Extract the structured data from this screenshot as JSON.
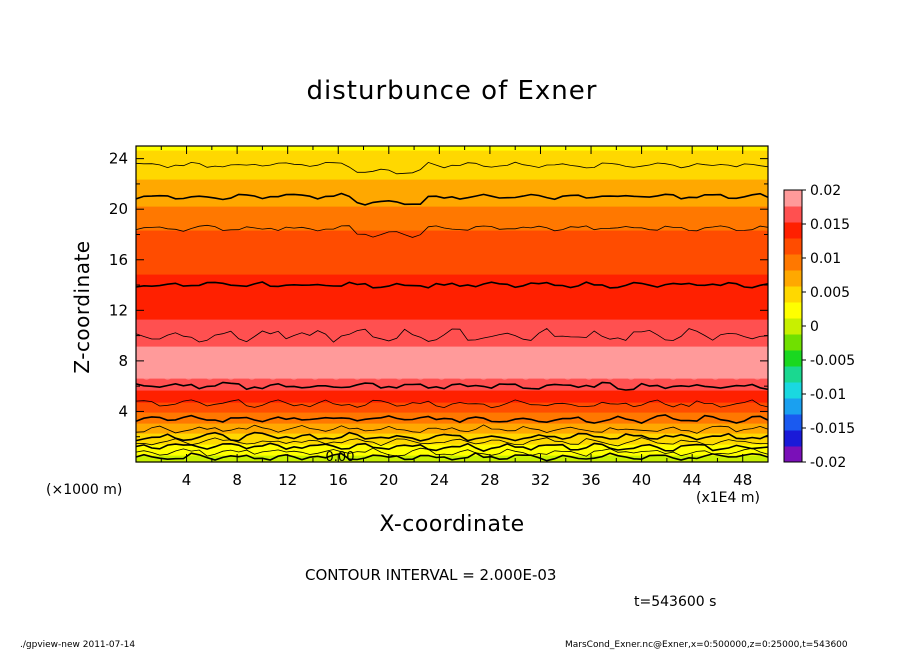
{
  "chart_data": {
    "type": "heatmap",
    "title": "disturbunce of Exner",
    "xlabel": "X-coordinate",
    "ylabel": "Z-coordinate",
    "x_unit_label": "(×1000 m)",
    "x_multiplier_label": "(x1E4 m)",
    "xlim": [
      0,
      50
    ],
    "ylim": [
      0,
      25
    ],
    "xticks": [
      "4",
      "8",
      "12",
      "16",
      "20",
      "24",
      "28",
      "32",
      "36",
      "40",
      "44",
      "48"
    ],
    "yticks": [
      "4",
      "8",
      "12",
      "16",
      "20",
      "24"
    ],
    "colorbar": {
      "ticks": [
        "0.02",
        "0.015",
        "0.01",
        "0.005",
        "0",
        "-0.005",
        "-0.01",
        "-0.015",
        "-0.02"
      ],
      "min": -0.02,
      "max": 0.02,
      "colors": [
        "#7a10b8",
        "#1a1ad8",
        "#1a5af0",
        "#1aa0f0",
        "#1ad8e0",
        "#1ad890",
        "#1ad820",
        "#70e000",
        "#c8f000",
        "#ffff00",
        "#ffd800",
        "#ffa800",
        "#ff7800",
        "#ff4c00",
        "#ff2000",
        "#ff5050",
        "#ff9a9a"
      ]
    },
    "contour_labels": [
      "0.00"
    ],
    "levels": [
      {
        "z": 0.0,
        "value": 0.0
      },
      {
        "z": 0.4,
        "value": 0.0008
      },
      {
        "z": 0.8,
        "value": 0.0018
      },
      {
        "z": 1.2,
        "value": 0.0028
      },
      {
        "z": 1.6,
        "value": 0.004
      },
      {
        "z": 2.0,
        "value": 0.0052
      },
      {
        "z": 2.6,
        "value": 0.0068
      },
      {
        "z": 3.4,
        "value": 0.009
      },
      {
        "z": 4.6,
        "value": 0.0125
      },
      {
        "z": 6.0,
        "value": 0.0162
      },
      {
        "z": 7.0,
        "value": 0.0185
      },
      {
        "z": 8.5,
        "value": 0.0188
      },
      {
        "z": 10.0,
        "value": 0.0162
      },
      {
        "z": 14.0,
        "value": 0.0135
      },
      {
        "z": 18.5,
        "value": 0.0105
      },
      {
        "z": 21.0,
        "value": 0.0072
      },
      {
        "z": 23.5,
        "value": 0.0048
      },
      {
        "z": 25.0,
        "value": 0.0032
      }
    ]
  },
  "annotations": {
    "contour_interval": "CONTOUR INTERVAL = 2.000E-03",
    "time": "t=543600 s"
  },
  "footer": {
    "left": "./gpview-new   2011-07-14",
    "right": "MarsCond_Exner.nc@Exner,x=0:500000,z=0:25000,t=543600"
  }
}
